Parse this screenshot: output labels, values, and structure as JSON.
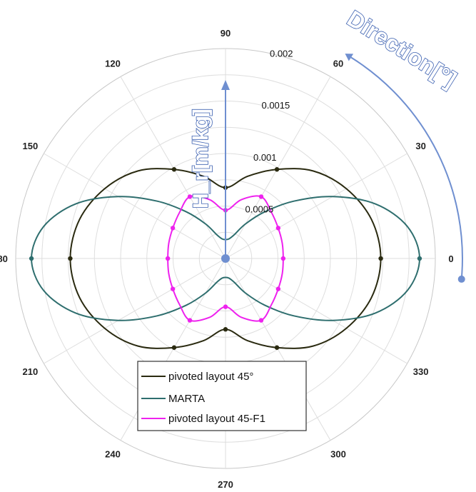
{
  "chart_data": {
    "type": "polar-line",
    "title": "",
    "annotations": {
      "direction_label": "Direction[°]",
      "radial_axis_label": "H_r[m/kg]"
    },
    "angle_ticks": [
      "0",
      "30",
      "60",
      "90",
      "120",
      "150",
      "180",
      "210",
      "240",
      "270",
      "300",
      "330"
    ],
    "angle_values": [
      0,
      30,
      60,
      90,
      120,
      150,
      180,
      210,
      240,
      270,
      300,
      330
    ],
    "r_ticks": [
      "0.0005",
      "0.001",
      "0.0015",
      "0.002"
    ],
    "r_values": [
      0.0005,
      0.001,
      0.0015,
      0.002
    ],
    "rlim": [
      0,
      0.002
    ],
    "grid": true,
    "legend_position": "bottom-center",
    "series": [
      {
        "name": "pivoted layout 45°",
        "color": "#2a2a10",
        "angles": [
          0,
          15,
          30,
          45,
          60,
          75,
          90,
          105,
          120,
          135,
          150,
          165,
          180,
          195,
          210,
          225,
          240,
          255,
          270,
          285,
          300,
          315,
          330,
          345
        ],
        "values": [
          0.00148,
          0.00144,
          0.00133,
          0.00118,
          0.00098,
          0.00081,
          0.000675,
          0.00081,
          0.00098,
          0.00118,
          0.00133,
          0.00144,
          0.00148,
          0.00144,
          0.00133,
          0.00118,
          0.00098,
          0.00081,
          0.000675,
          0.00081,
          0.00098,
          0.00118,
          0.00133,
          0.00144
        ],
        "marker_angles": [
          0,
          60,
          90,
          120,
          180,
          240,
          270,
          300
        ],
        "marker_values": [
          0.00148,
          0.00098,
          0.000675,
          0.00098,
          0.00148,
          0.00098,
          0.000675,
          0.00098
        ]
      },
      {
        "name": "MARTA",
        "color": "#2e6e6e",
        "angles": [
          0,
          10,
          20,
          30,
          40,
          50,
          60,
          70,
          80,
          90,
          100,
          110,
          120,
          130,
          140,
          150,
          160,
          170,
          180,
          190,
          200,
          210,
          220,
          230,
          240,
          250,
          260,
          270,
          280,
          290,
          300,
          310,
          320,
          330,
          340,
          350
        ],
        "values": [
          0.00185,
          0.00176,
          0.00152,
          0.00118,
          0.00085,
          0.00058,
          0.00038,
          0.00024,
          0.00019,
          0.00018,
          0.00019,
          0.00024,
          0.00038,
          0.00058,
          0.00085,
          0.00118,
          0.00152,
          0.00176,
          0.00185,
          0.00176,
          0.00152,
          0.00118,
          0.00085,
          0.00058,
          0.00038,
          0.00024,
          0.00019,
          0.00018,
          0.00019,
          0.00024,
          0.00038,
          0.00058,
          0.00085,
          0.00118,
          0.00152,
          0.00176
        ],
        "marker_angles": [
          0,
          180
        ],
        "marker_values": [
          0.00185,
          0.00185
        ]
      },
      {
        "name": "pivoted layout 45-F1",
        "color": "#ee22ee",
        "angles": [
          0,
          15,
          30,
          45,
          60,
          75,
          90,
          105,
          120,
          135,
          150,
          165,
          180,
          195,
          210,
          225,
          240,
          255,
          270,
          285,
          300,
          315,
          330,
          345
        ],
        "values": [
          0.00055,
          0.00056,
          0.00058,
          0.00062,
          0.00068,
          0.00058,
          0.00046,
          0.00058,
          0.00068,
          0.00062,
          0.00058,
          0.00056,
          0.00055,
          0.00056,
          0.00058,
          0.00062,
          0.00068,
          0.00058,
          0.00046,
          0.00058,
          0.00068,
          0.00062,
          0.00058,
          0.00056
        ],
        "marker_angles": [
          0,
          30,
          60,
          90,
          120,
          150,
          180,
          210,
          240,
          270,
          300,
          330
        ],
        "marker_values": [
          0.00055,
          0.00058,
          0.00068,
          0.00046,
          0.00068,
          0.00058,
          0.00055,
          0.00058,
          0.00068,
          0.00046,
          0.00068,
          0.00058
        ]
      }
    ],
    "legend": [
      "pivoted layout 45°",
      "MARTA",
      "pivoted layout 45-F1"
    ]
  }
}
